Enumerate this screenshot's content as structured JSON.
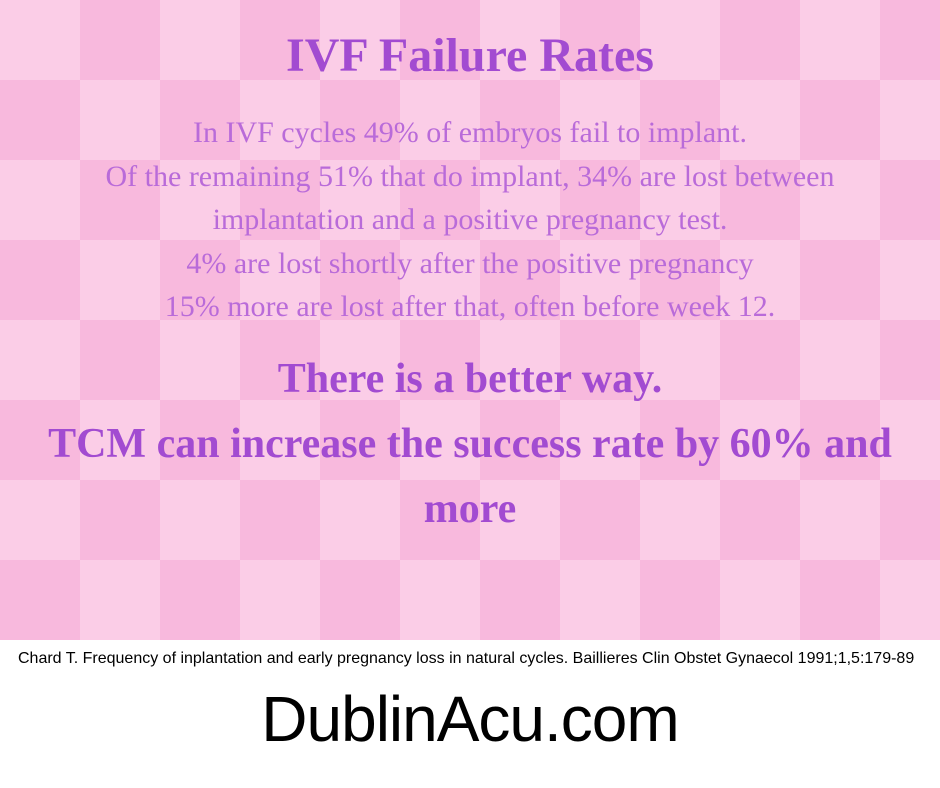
{
  "panel": {
    "background_base": "#fbcde7",
    "background_diamond": "#f8b9dd",
    "title_color": "#a24bd1",
    "body_color": "#b96bd9",
    "emphasis_color": "#a24bd1"
  },
  "title": "IVF Failure Rates",
  "body": {
    "line1": "In IVF cycles 49% of embryos fail to implant.",
    "line2": "Of the remaining 51% that do implant, 34% are lost between implantation and a positive pregnancy test.",
    "line3": "4% are lost shortly after the positive pregnancy",
    "line4": "15% more are lost after that, often before week 12."
  },
  "emphasis": {
    "line1": "There is a better way.",
    "line2": "TCM can increase the success rate by 60% and more"
  },
  "citation": "Chard T. Frequency of inplantation and early pregnancy loss in natural cycles. Baillieres Clin Obstet Gynaecol 1991;1,5:179-89",
  "site": "DublinAcu.com",
  "typography": {
    "title_fontsize": 48,
    "body_fontsize": 30,
    "emphasis_fontsize": 42,
    "citation_fontsize": 16,
    "site_fontsize": 64
  }
}
